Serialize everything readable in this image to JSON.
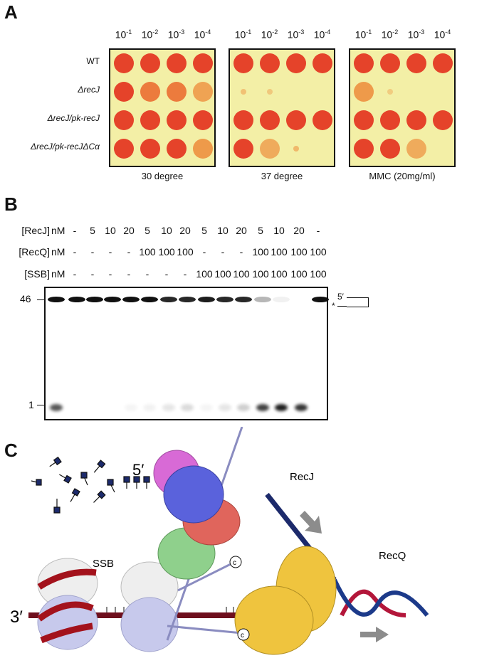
{
  "panel_a": {
    "label": "A",
    "dilutions": [
      {
        "base": "10",
        "exp": "-1"
      },
      {
        "base": "10",
        "exp": "-2"
      },
      {
        "base": "10",
        "exp": "-3"
      },
      {
        "base": "10",
        "exp": "-4"
      }
    ],
    "strains": [
      "WT",
      "ΔrecJ",
      "ΔrecJ/pk-recJ",
      "ΔrecJ/pk-recJΔCα"
    ],
    "plates": [
      {
        "caption": "30 degree",
        "growth": [
          [
            1,
            1,
            1,
            1
          ],
          [
            1,
            0.8,
            0.7,
            0.5
          ],
          [
            1,
            1,
            1,
            1
          ],
          [
            1,
            0.9,
            0.9,
            0.6
          ]
        ]
      },
      {
        "caption": "37 degree",
        "growth": [
          [
            1,
            1,
            1,
            0.9
          ],
          [
            0.15,
            0.05,
            0,
            0
          ],
          [
            1,
            1,
            1,
            1
          ],
          [
            0.9,
            0.4,
            0.25,
            0
          ]
        ]
      },
      {
        "caption": "MMC (20mg/ml)",
        "growth": [
          [
            1,
            1,
            1,
            0.9
          ],
          [
            0.6,
            0.02,
            0,
            0
          ],
          [
            1,
            1,
            1,
            0.9
          ],
          [
            0.9,
            0.9,
            0.4,
            0
          ]
        ]
      }
    ]
  },
  "panel_b": {
    "label": "B",
    "rows": [
      {
        "label": "[RecJ]",
        "unit": "nM",
        "values": [
          "-",
          "5",
          "10",
          "20",
          "5",
          "10",
          "20",
          "5",
          "10",
          "20",
          "5",
          "10",
          "20",
          "-"
        ]
      },
      {
        "label": "[RecQ]",
        "unit": "nM",
        "values": [
          "-",
          "-",
          "-",
          "-",
          "100",
          "100",
          "100",
          "-",
          "-",
          "-",
          "100",
          "100",
          "100",
          "100"
        ]
      },
      {
        "label": "[SSB]",
        "unit": "nM",
        "values": [
          "-",
          "-",
          "-",
          "-",
          "-",
          "-",
          "-",
          "100",
          "100",
          "100",
          "100",
          "100",
          "100",
          "100"
        ]
      }
    ],
    "markers": [
      "46",
      "1"
    ],
    "substrate_labels": {
      "five_prime": "5′",
      "star": "*"
    },
    "band_46_intensity": [
      1,
      1,
      1,
      1,
      1,
      1,
      0.9,
      0.9,
      0.95,
      0.9,
      0.9,
      0.3,
      0.06,
      0,
      1
    ],
    "band_1_intensity": [
      0.7,
      0,
      0,
      0,
      0.04,
      0.05,
      0.1,
      0.15,
      0.04,
      0.1,
      0.2,
      0.8,
      0.95,
      0.85,
      0
    ]
  },
  "panel_c": {
    "label": "C",
    "recj": "RecJ",
    "recq": "RecQ",
    "ssb": "SSB",
    "five_prime": "5′",
    "three_prime": "3′",
    "c_term": "c"
  }
}
